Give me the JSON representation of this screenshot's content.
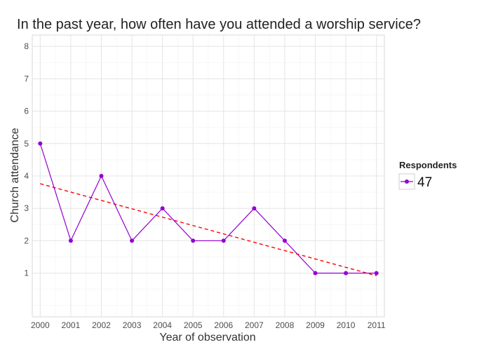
{
  "chart_data": {
    "type": "line",
    "title": "In the past year, how often have you attended a worship service?",
    "xlabel": "Year of observation",
    "ylabel": "Church attendance",
    "x": [
      2000,
      2001,
      2002,
      2003,
      2004,
      2005,
      2006,
      2007,
      2008,
      2009,
      2010,
      2011
    ],
    "xticks": [
      "2000",
      "2001",
      "2002",
      "2003",
      "2004",
      "2005",
      "2006",
      "2007",
      "2008",
      "2009",
      "2010",
      "2011"
    ],
    "yticks": [
      "1",
      "2",
      "3",
      "4",
      "5",
      "6",
      "7",
      "8"
    ],
    "xlim": [
      1999.74,
      2011.26
    ],
    "ylim": [
      -0.35,
      8.35
    ],
    "grid": true,
    "series": [
      {
        "name": "47",
        "color": "#9400D3",
        "values": [
          5,
          2,
          4,
          2,
          3,
          2,
          2,
          3,
          2,
          1,
          1,
          1
        ]
      }
    ],
    "trend": {
      "color": "#FF0000",
      "style": "dashed",
      "x": [
        2000,
        2011
      ],
      "values": [
        3.76,
        0.92
      ]
    },
    "legend": {
      "title": "Respondents",
      "placement": "right",
      "entries": [
        "47"
      ]
    }
  }
}
